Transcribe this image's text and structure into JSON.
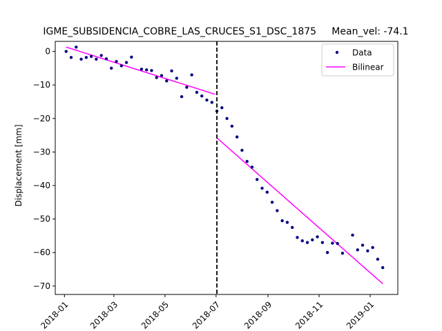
{
  "chart_data": {
    "type": "scatter",
    "title": "IGME_SUBSIDENCIA_COBRE_LAS_CRUCES_S1_DSC_1875     Mean_vel: -74.1",
    "xlabel": "",
    "ylabel": "Displacement [mm]",
    "xlim": [
      "2017-12-21",
      "2019-02-03"
    ],
    "ylim": [
      -72.5,
      3.0
    ],
    "x_ticks": [
      "2018-01",
      "2018-03",
      "2018-05",
      "2018-07",
      "2018-09",
      "2018-11",
      "2019-01"
    ],
    "y_ticks": [
      0,
      -10,
      -20,
      -30,
      -40,
      -50,
      -60,
      -70
    ],
    "grid": false,
    "legend_position": "top-right",
    "breakpoint_date": "2018-07-02",
    "series": [
      {
        "name": "Data",
        "kind": "scatter",
        "color": "#000080",
        "points": [
          [
            "2018-01-03",
            0.0
          ],
          [
            "2018-01-09",
            -1.8
          ],
          [
            "2018-01-15",
            1.3
          ],
          [
            "2018-01-21",
            -2.3
          ],
          [
            "2018-01-27",
            -1.8
          ],
          [
            "2018-02-02",
            -1.5
          ],
          [
            "2018-02-08",
            -2.3
          ],
          [
            "2018-02-14",
            -1.2
          ],
          [
            "2018-02-20",
            -2.2
          ],
          [
            "2018-02-26",
            -5.0
          ],
          [
            "2018-03-04",
            -3.0
          ],
          [
            "2018-03-10",
            -4.3
          ],
          [
            "2018-03-16",
            -3.3
          ],
          [
            "2018-03-22",
            -1.7
          ],
          [
            "2018-04-03",
            -5.3
          ],
          [
            "2018-04-09",
            -5.5
          ],
          [
            "2018-04-15",
            -5.7
          ],
          [
            "2018-04-21",
            -7.8
          ],
          [
            "2018-04-27",
            -7.2
          ],
          [
            "2018-05-03",
            -8.8
          ],
          [
            "2018-05-09",
            -5.8
          ],
          [
            "2018-05-15",
            -8.0
          ],
          [
            "2018-05-21",
            -13.5
          ],
          [
            "2018-05-27",
            -10.7
          ],
          [
            "2018-06-02",
            -7.0
          ],
          [
            "2018-06-08",
            -12.2
          ],
          [
            "2018-06-14",
            -13.3
          ],
          [
            "2018-06-20",
            -14.5
          ],
          [
            "2018-06-26",
            -15.2
          ],
          [
            "2018-07-02",
            -17.8
          ],
          [
            "2018-07-08",
            -16.8
          ],
          [
            "2018-07-14",
            -20.0
          ],
          [
            "2018-07-20",
            -22.3
          ],
          [
            "2018-07-26",
            -25.5
          ],
          [
            "2018-08-01",
            -29.5
          ],
          [
            "2018-08-07",
            -32.8
          ],
          [
            "2018-08-13",
            -34.5
          ],
          [
            "2018-08-19",
            -38.2
          ],
          [
            "2018-08-25",
            -40.8
          ],
          [
            "2018-08-31",
            -42.0
          ],
          [
            "2018-09-06",
            -45.0
          ],
          [
            "2018-09-12",
            -47.5
          ],
          [
            "2018-09-18",
            -50.5
          ],
          [
            "2018-09-24",
            -51.0
          ],
          [
            "2018-09-30",
            -52.5
          ],
          [
            "2018-10-06",
            -55.5
          ],
          [
            "2018-10-12",
            -56.5
          ],
          [
            "2018-10-18",
            -57.0
          ],
          [
            "2018-10-24",
            -56.2
          ],
          [
            "2018-10-30",
            -55.3
          ],
          [
            "2018-11-05",
            -57.0
          ],
          [
            "2018-11-11",
            -60.0
          ],
          [
            "2018-11-17",
            -57.2
          ],
          [
            "2018-11-23",
            -57.3
          ],
          [
            "2018-11-29",
            -60.2
          ],
          [
            "2018-12-11",
            -54.8
          ],
          [
            "2018-12-17",
            -59.2
          ],
          [
            "2018-12-23",
            -57.8
          ],
          [
            "2018-12-29",
            -59.5
          ],
          [
            "2019-01-04",
            -58.5
          ],
          [
            "2019-01-10",
            -62.0
          ],
          [
            "2019-01-16",
            -64.5
          ]
        ]
      },
      {
        "name": "Bilinear",
        "kind": "line",
        "color": "#ff00ff",
        "segments": [
          [
            [
              "2018-01-03",
              1.3
            ],
            [
              "2018-06-30",
              -12.8
            ]
          ],
          [
            [
              "2018-07-02",
              -25.8
            ],
            [
              "2019-01-16",
              -69.3
            ]
          ]
        ]
      }
    ]
  }
}
